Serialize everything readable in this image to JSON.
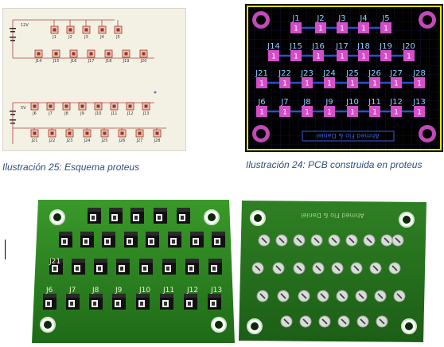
{
  "captions": {
    "schematic": "Ilustración 25: Esquema proteus",
    "pcb": "Ilustración 24: PCB construida en proteus"
  },
  "pcb": {
    "row1": [
      "J1",
      "J2",
      "J3",
      "J4",
      "J5"
    ],
    "row2": [
      "J14",
      "J15",
      "J16",
      "J17",
      "J18",
      "J19",
      "J20"
    ],
    "row3": [
      "J21",
      "J22",
      "J23",
      "J24",
      "J25",
      "J26",
      "J27",
      "J28"
    ],
    "row4": [
      "J6",
      "J7",
      "J8",
      "J9",
      "J10",
      "J11",
      "J12",
      "J13"
    ],
    "pad_label": "1",
    "footer_text": "Ahmed Flo  & Daniel",
    "colors": {
      "board": "#000000",
      "outline": "#e8e800",
      "grid": "#1a1a55",
      "pad": "#d44ec8",
      "label": "#8fd0ff",
      "trace": "#2b4ec8"
    }
  },
  "render": {
    "front_labels": [
      "J6",
      "J7",
      "J8",
      "J9",
      "J10",
      "J11",
      "J12",
      "J13"
    ],
    "j21_label": "J21",
    "back_text": "Ahmed Flo  & Daniel"
  },
  "schematic": {
    "top_refs": [
      "J1",
      "J2",
      "J3",
      "J4",
      "J5"
    ],
    "mid_refs": [
      "J14",
      "J15",
      "J16",
      "J17",
      "J18",
      "J19",
      "J20"
    ],
    "low_refs": [
      "J6",
      "J7",
      "J8",
      "J9",
      "J10",
      "J11",
      "J12",
      "J13"
    ],
    "bot_refs": [
      "J21",
      "J22",
      "J23",
      "J24",
      "J25",
      "J26",
      "J27",
      "J28"
    ],
    "supply_top": "12V",
    "supply_bot": "5V"
  }
}
